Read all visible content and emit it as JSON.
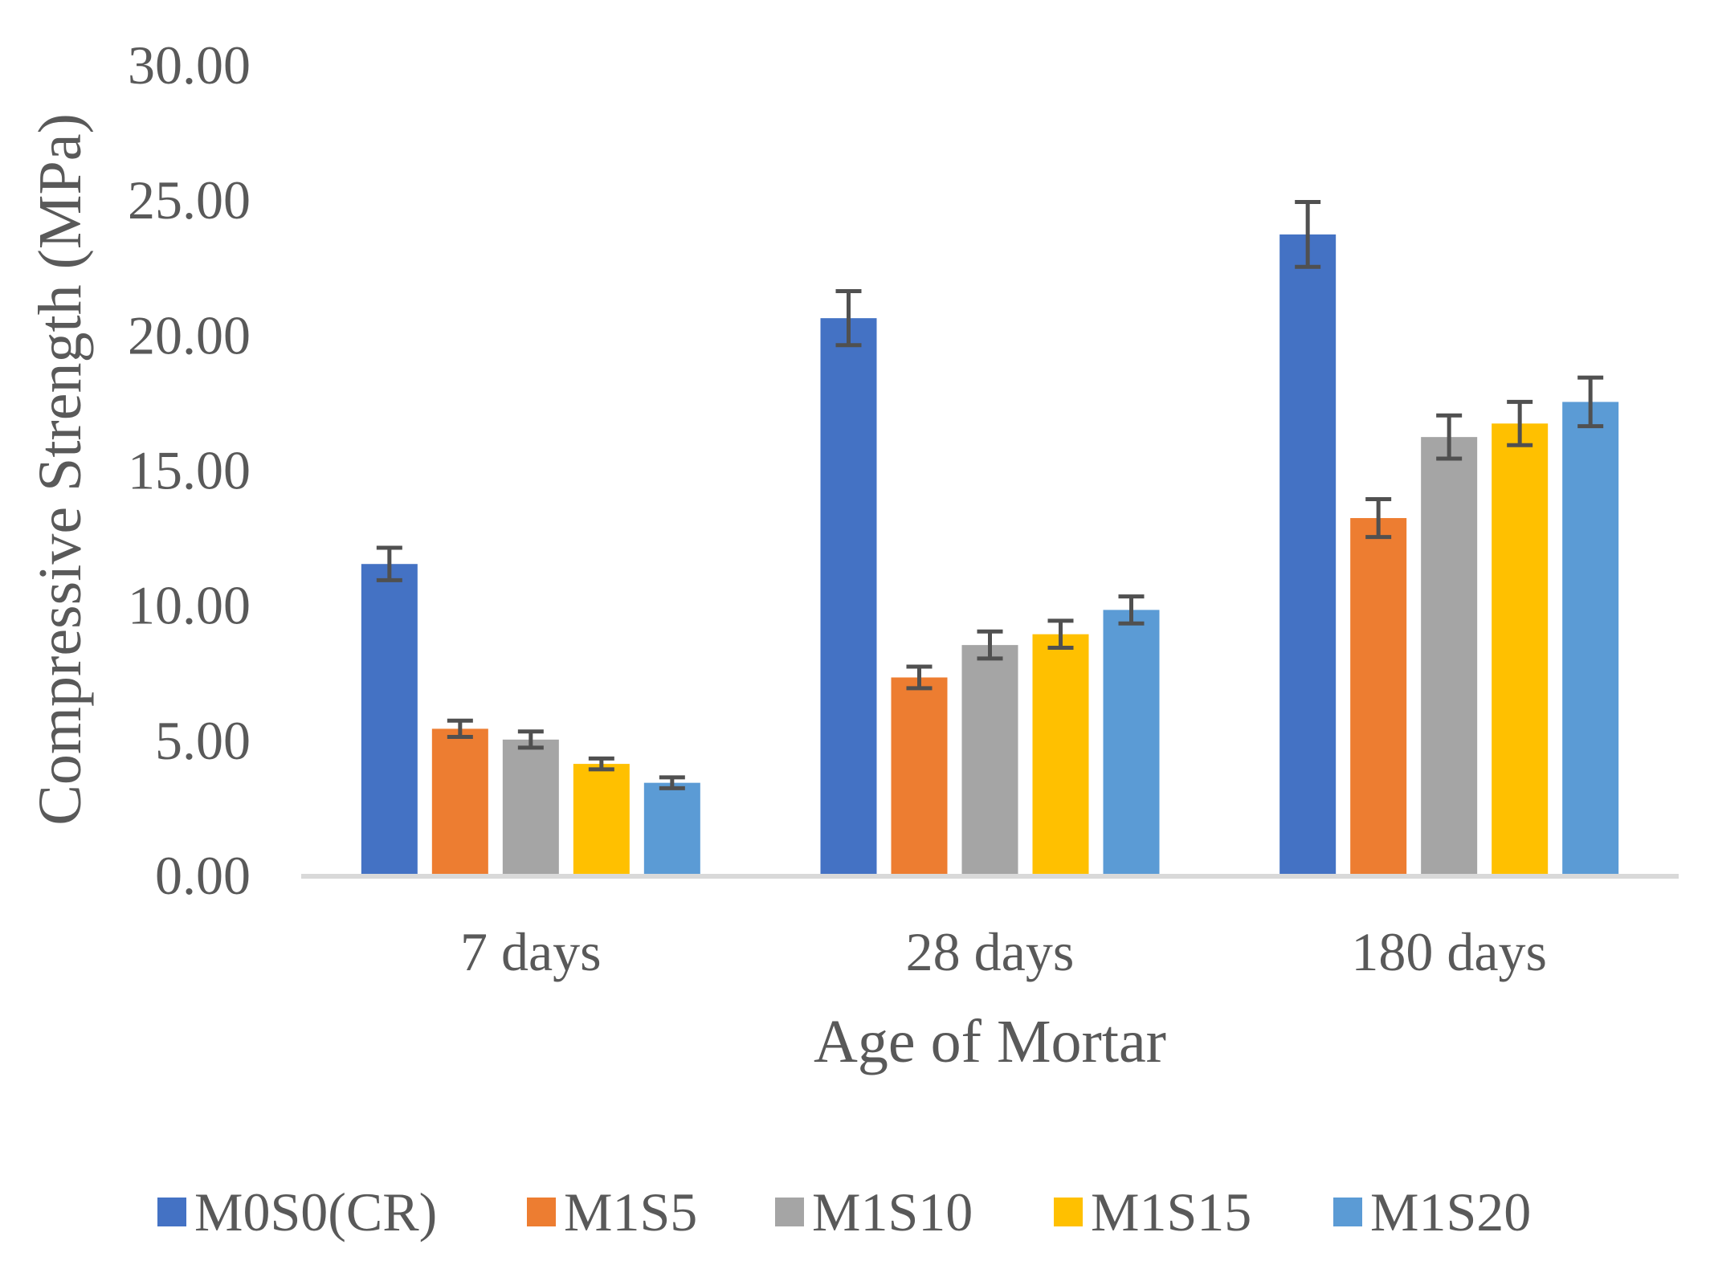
{
  "chart_data": {
    "type": "bar",
    "title": "",
    "xlabel": "Age of Mortar",
    "ylabel": "Compressive Strength (MPa)",
    "ylim": [
      0,
      30
    ],
    "yticks": [
      "0.00",
      "5.00",
      "10.00",
      "15.00",
      "20.00",
      "25.00",
      "30.00"
    ],
    "grid": false,
    "legend_position": "bottom",
    "categories": [
      "7 days",
      "28 days",
      "180 days"
    ],
    "series": [
      {
        "name": "M0S0(CR)",
        "color": "#4472C4",
        "values": [
          11.5,
          20.6,
          23.7
        ],
        "errors": [
          0.6,
          1.0,
          1.2
        ]
      },
      {
        "name": "M1S5",
        "color": "#ED7D31",
        "values": [
          5.4,
          7.3,
          13.2
        ],
        "errors": [
          0.3,
          0.4,
          0.7
        ]
      },
      {
        "name": "M1S10",
        "color": "#A5A5A5",
        "values": [
          5.0,
          8.5,
          16.2
        ],
        "errors": [
          0.3,
          0.5,
          0.8
        ]
      },
      {
        "name": "M1S15",
        "color": "#FFC000",
        "values": [
          4.1,
          8.9,
          16.7
        ],
        "errors": [
          0.2,
          0.5,
          0.8
        ]
      },
      {
        "name": "M1S20",
        "color": "#5B9BD5",
        "values": [
          3.4,
          9.8,
          17.5
        ],
        "errors": [
          0.2,
          0.5,
          0.9
        ]
      }
    ],
    "error_bar_color": "#505050",
    "axis_color": "#D9D9D9"
  }
}
